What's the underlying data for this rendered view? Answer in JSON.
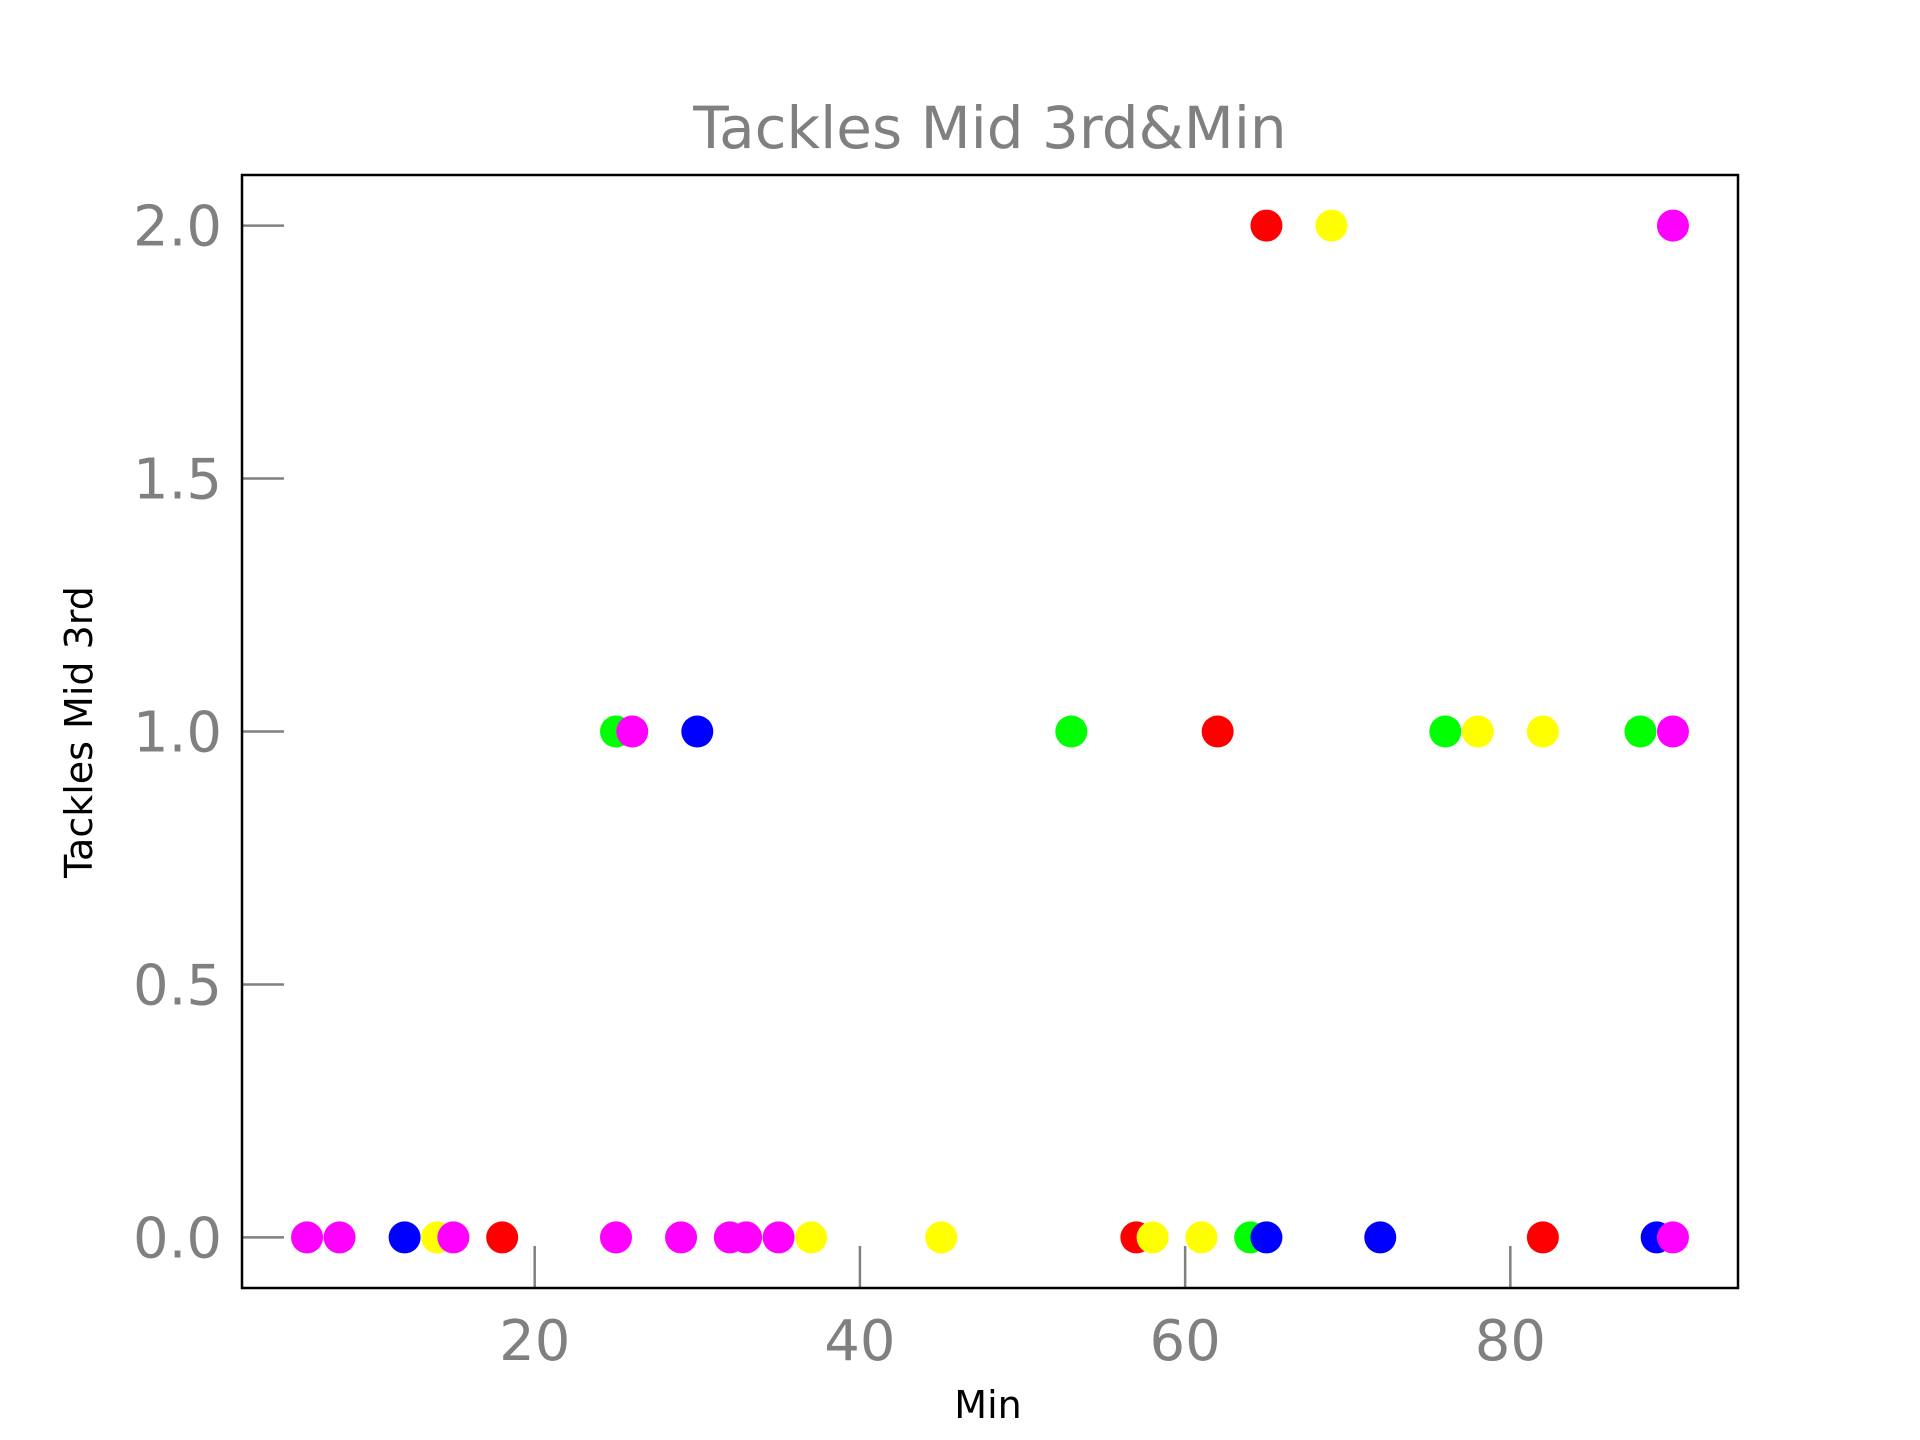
{
  "chart_data": {
    "type": "scatter",
    "title": "Tackles Mid 3rd&Min",
    "xlabel": "Min",
    "ylabel": "Tackles Mid 3rd",
    "xlim": [
      2,
      94
    ],
    "ylim": [
      -0.1,
      2.1
    ],
    "xticks": [
      20,
      40,
      60,
      80
    ],
    "yticks": [
      0.0,
      0.5,
      1.0,
      1.5,
      2.0
    ],
    "xtick_labels": [
      "20",
      "40",
      "60",
      "80"
    ],
    "ytick_labels": [
      "0.0",
      "0.5",
      "1.0",
      "1.5",
      "2.0"
    ],
    "grid": false,
    "legend": false,
    "series": [
      {
        "color": "#ff0000",
        "points": [
          [
            18,
            0
          ],
          [
            57,
            0
          ],
          [
            62,
            1
          ],
          [
            65,
            2
          ],
          [
            82,
            0
          ]
        ]
      },
      {
        "color": "#00ff00",
        "points": [
          [
            25,
            1
          ],
          [
            53,
            1
          ],
          [
            64,
            0
          ],
          [
            76,
            1
          ],
          [
            88,
            1
          ]
        ]
      },
      {
        "color": "#0000ff",
        "points": [
          [
            12,
            0
          ],
          [
            30,
            1
          ],
          [
            65,
            0
          ],
          [
            72,
            0
          ],
          [
            89,
            0
          ]
        ]
      },
      {
        "color": "#ffff00",
        "points": [
          [
            14,
            0
          ],
          [
            37,
            0
          ],
          [
            45,
            0
          ],
          [
            58,
            0
          ],
          [
            61,
            0
          ],
          [
            69,
            2
          ],
          [
            78,
            1
          ],
          [
            82,
            1
          ]
        ]
      },
      {
        "color": "#ff00ff",
        "points": [
          [
            6,
            0
          ],
          [
            8,
            0
          ],
          [
            15,
            0
          ],
          [
            25,
            0
          ],
          [
            26,
            1
          ],
          [
            29,
            0
          ],
          [
            32,
            0
          ],
          [
            33,
            0
          ],
          [
            35,
            0
          ],
          [
            90,
            0
          ],
          [
            90,
            1
          ],
          [
            90,
            2
          ]
        ]
      }
    ]
  }
}
